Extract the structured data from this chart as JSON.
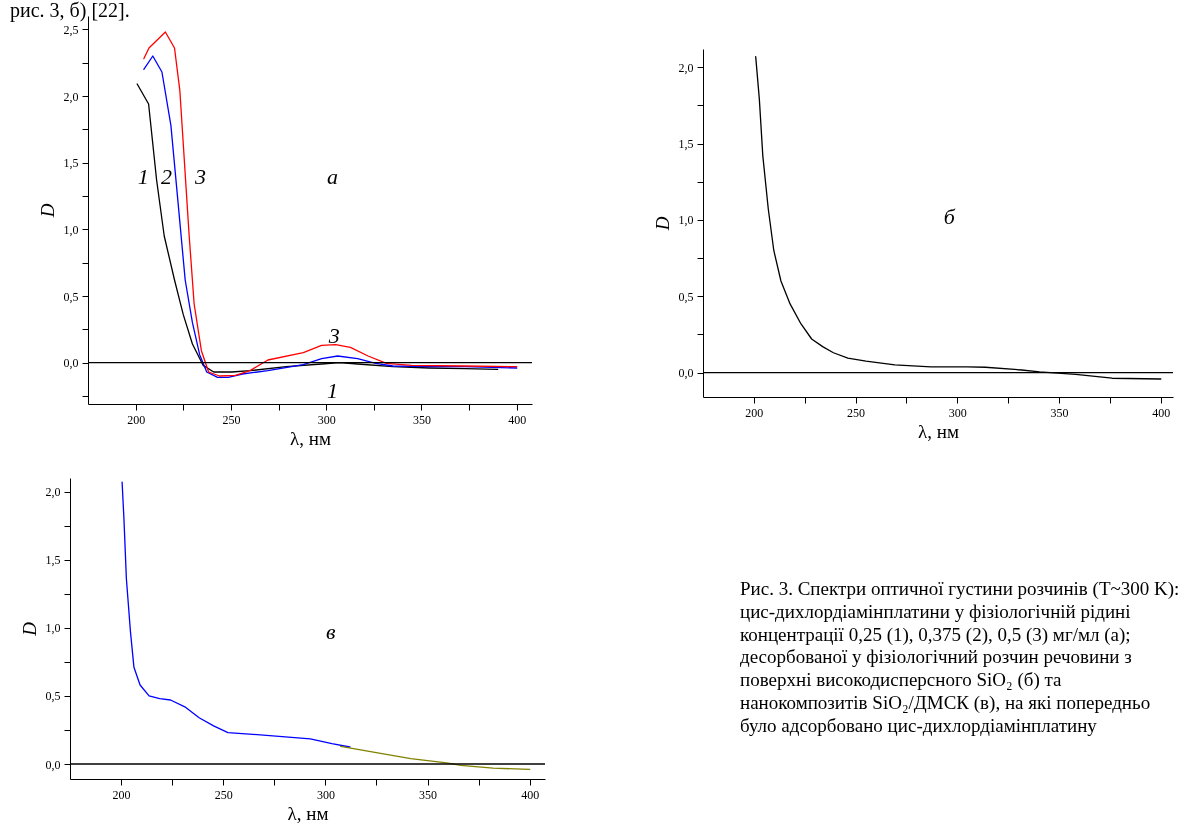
{
  "chart_data": [
    {
      "type": "line",
      "xlabel": "λ, нм",
      "ylabel": "D",
      "xlim": [
        175,
        408
      ],
      "ylim": [
        -0.31,
        2.6
      ],
      "xticks": [
        200,
        {
          "value": 225,
          "label": null
        },
        250,
        {
          "value": 275,
          "label": null
        },
        300,
        {
          "value": 325,
          "label": null
        },
        350,
        {
          "value": 375,
          "label": null
        },
        400
      ],
      "yticks": [
        {
          "value": -0.25,
          "label": null
        },
        {
          "value": 0,
          "label": "0,0"
        },
        {
          "value": 0.25,
          "label": null
        },
        {
          "value": 0.5,
          "label": "0,5"
        },
        {
          "value": 0.75,
          "label": null
        },
        {
          "value": 1,
          "label": "1,0"
        },
        {
          "value": 1.25,
          "label": null
        },
        {
          "value": 1.5,
          "label": "1,5"
        },
        {
          "value": 1.75,
          "label": null
        },
        {
          "value": 2,
          "label": "2,0"
        },
        {
          "value": 2.25,
          "label": null
        },
        {
          "value": 2.5,
          "label": "2,5"
        }
      ],
      "ref_lines": [
        {
          "axis": "y",
          "value": 0,
          "color": "#000000"
        }
      ],
      "annotations": [
        "рис. 3, б) [22].",
        "1",
        "2",
        "3",
        "а",
        "3",
        "1"
      ],
      "series": [
        {
          "color": "#000000",
          "x": [
            200.8,
            206.8,
            211,
            215,
            220.4,
            225,
            229.8,
            235.4,
            241,
            250.5,
            260,
            279,
            297.6,
            307,
            316.5,
            335,
            354,
            373,
            390
          ],
          "values": [
            2.09,
            1.94,
            1.37,
            0.95,
            0.62,
            0.36,
            0.14,
            -0.02,
            -0.07,
            -0.07,
            -0.06,
            -0.03,
            -0.01,
            0,
            -0.01,
            -0.03,
            -0.04,
            -0.045,
            -0.05
          ]
        },
        {
          "color": "#0000ff",
          "x": [
            204.3,
            209,
            213.8,
            218.5,
            222.2,
            226,
            229.8,
            233.6,
            237.3,
            243,
            248.6,
            256,
            269.4,
            288,
            297.6,
            306,
            316.5,
            326,
            335,
            354,
            373,
            400
          ],
          "values": [
            2.2,
            2.3,
            2.18,
            1.78,
            1.21,
            0.62,
            0.3,
            0.06,
            -0.07,
            -0.11,
            -0.11,
            -0.085,
            -0.06,
            -0.015,
            0.03,
            0.05,
            0.03,
            -0.005,
            -0.025,
            -0.03,
            -0.03,
            -0.04
          ]
        },
        {
          "color": "#ff0000",
          "x": [
            204.3,
            207,
            212.8,
            215.6,
            220.4,
            223.2,
            225,
            228,
            230.7,
            234.5,
            238.3,
            244,
            252.4,
            260,
            269.4,
            288,
            297.6,
            305,
            312.7,
            322,
            331.6,
            344.8,
            373,
            400
          ],
          "values": [
            2.28,
            2.36,
            2.44,
            2.48,
            2.36,
            2.04,
            1.64,
            0.97,
            0.44,
            0.09,
            -0.07,
            -0.1,
            -0.095,
            -0.06,
            0.02,
            0.075,
            0.13,
            0.135,
            0.115,
            0.05,
            -0.005,
            -0.02,
            -0.025,
            -0.03
          ]
        }
      ]
    },
    {
      "type": "line",
      "xlabel": "λ, нм",
      "ylabel": "D",
      "xlim": [
        175,
        406
      ],
      "ylim": [
        -0.16,
        2.12
      ],
      "xticks": [
        200,
        {
          "value": 225,
          "label": null
        },
        250,
        {
          "value": 275,
          "label": null
        },
        300,
        {
          "value": 325,
          "label": null
        },
        350,
        {
          "value": 375,
          "label": null
        },
        400
      ],
      "yticks": [
        {
          "value": 0,
          "label": "0,0"
        },
        {
          "value": 0.25,
          "label": null
        },
        {
          "value": 0.5,
          "label": "0,5"
        },
        {
          "value": 0.75,
          "label": null
        },
        {
          "value": 1,
          "label": "1,0"
        },
        {
          "value": 1.25,
          "label": null
        },
        {
          "value": 1.5,
          "label": "1,5"
        },
        {
          "value": 1.75,
          "label": null
        },
        {
          "value": 2,
          "label": "2,0"
        }
      ],
      "ref_lines": [
        {
          "axis": "y",
          "value": 0,
          "color": "#000000"
        }
      ],
      "annotations": [
        "б",
        "Рис. 3. Спектри оптичної густини розчинів (T~300 K): цис-дихлордіамінплатини у фізіологічній рідині концентрації 0,25 (1), 0,375 (2), 0,5 (3) мг/мл (а); десорбованої у фізіологічний розчин речовини з поверхні високодисперсного SiO₂ (б) та нанокомпозитів SiO₂/ДМСК (в), на які попередньо було адсорбовано цис-дихлордіамінплатину"
      ],
      "series": [
        {
          "color": "#000000",
          "x": [
            200.9,
            202.7,
            204.4,
            207.1,
            209.8,
            213.3,
            217.8,
            223.1,
            228.4,
            233.8,
            239.1,
            246.2,
            255.1,
            269.3,
            287,
            304.9,
            313.8,
            331.6,
            340.4,
            358.2,
            376,
            400
          ],
          "values": [
            2.07,
            1.79,
            1.42,
            1.07,
            0.8,
            0.6,
            0.45,
            0.32,
            0.22,
            0.17,
            0.13,
            0.095,
            0.075,
            0.05,
            0.037,
            0.037,
            0.035,
            0.017,
            0.005,
            -0.012,
            -0.037,
            -0.042
          ]
        }
      ]
    },
    {
      "type": "line",
      "xlabel": "λ, нм",
      "ylabel": "D",
      "xlim": [
        175,
        407.5
      ],
      "ylim": [
        -0.11,
        2.1
      ],
      "xticks": [
        200,
        {
          "value": 225,
          "label": null
        },
        250,
        {
          "value": 275,
          "label": null
        },
        300,
        {
          "value": 325,
          "label": null
        },
        350,
        {
          "value": 375,
          "label": null
        },
        400
      ],
      "yticks": [
        {
          "value": 0,
          "label": "0,0"
        },
        {
          "value": 0.25,
          "label": null
        },
        {
          "value": 0.5,
          "label": "0,5"
        },
        {
          "value": 0.75,
          "label": null
        },
        {
          "value": 1,
          "label": "1,0"
        },
        {
          "value": 1.25,
          "label": null
        },
        {
          "value": 1.5,
          "label": "1,5"
        },
        {
          "value": 1.75,
          "label": null
        },
        {
          "value": 2,
          "label": "2,0"
        }
      ],
      "ref_lines": [
        {
          "axis": "y",
          "value": 0,
          "color": "#000000"
        }
      ],
      "annotations": [
        "в"
      ],
      "series": [
        {
          "color": "#0000ff",
          "x": [
            200.5,
            201.4,
            202.6,
            204.6,
            206.3,
            209.3,
            213.7,
            218.9,
            224.2,
            231.2,
            238.2,
            245.3,
            252.3,
            262.8,
            280.4,
            292.6,
            303.2,
            312
          ],
          "values": [
            2.07,
            1.8,
            1.36,
            0.97,
            0.71,
            0.58,
            0.5,
            0.48,
            0.47,
            0.42,
            0.34,
            0.28,
            0.23,
            0.22,
            0.2,
            0.185,
            0.15,
            0.125
          ]
        },
        {
          "color": "#808000",
          "x": [
            307.5,
            324.2,
            341.8,
            359.3,
            366.3,
            382.1,
            400
          ],
          "values": [
            0.13,
            0.086,
            0.04,
            0.008,
            -0.01,
            -0.03,
            -0.04
          ]
        }
      ]
    }
  ]
}
